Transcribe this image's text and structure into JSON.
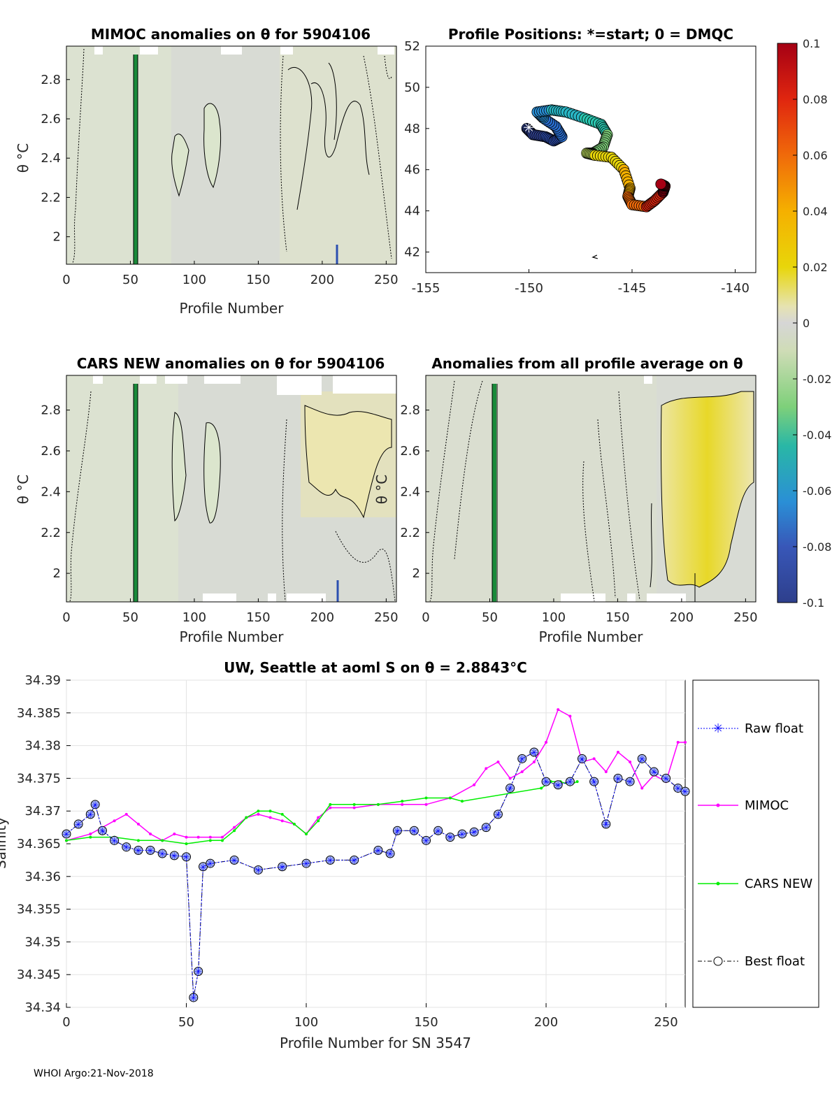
{
  "footer": "WHOI Argo:21-Nov-2018",
  "panels": {
    "mimoc": {
      "title": "MIMOC anomalies on θ  for 5904106",
      "xlabel": "Profile Number",
      "ylabel": "θ °C",
      "xticks": [
        0,
        50,
        100,
        150,
        200,
        250
      ],
      "yticks": [
        2,
        2.2,
        2.4,
        2.6,
        2.8
      ],
      "xlim": [
        0,
        258
      ],
      "ylim": [
        1.86,
        2.97
      ]
    },
    "positions": {
      "title": "Profile Positions: *=start; 0 = DMQC",
      "xticks": [
        -155,
        -150,
        -145,
        -140
      ],
      "yticks": [
        42,
        44,
        46,
        48,
        50,
        52
      ],
      "xlim": [
        -155,
        -139
      ],
      "ylim": [
        41,
        52
      ]
    },
    "cars": {
      "title": "CARS NEW anomalies on θ for 5904106",
      "xlabel": "Profile Number",
      "ylabel": "θ °C",
      "xticks": [
        0,
        50,
        100,
        150,
        200,
        250
      ],
      "yticks": [
        2,
        2.2,
        2.4,
        2.6,
        2.8
      ],
      "xlim": [
        0,
        258
      ],
      "ylim": [
        1.86,
        2.97
      ]
    },
    "avg": {
      "title": "Anomalies from all profile average on θ",
      "xlabel": "Profile Number",
      "ylabel": "θ °C",
      "xticks": [
        0,
        50,
        100,
        150,
        200,
        250
      ],
      "yticks": [
        2,
        2.2,
        2.4,
        2.6,
        2.8
      ],
      "xlim": [
        0,
        258
      ],
      "ylim": [
        1.86,
        2.97
      ]
    }
  },
  "colorbar": {
    "ticks": [
      "0.1",
      "0.08",
      "0.06",
      "0.04",
      "0.02",
      "0",
      "-0.02",
      "-0.04",
      "-0.06",
      "-0.08",
      "-0.1"
    ]
  },
  "chart_data": {
    "type": "line",
    "title": "UW, Seattle at aoml S on θ = 2.8843°C",
    "xlabel": "Profile Number for SN 3547",
    "ylabel": "Salinity",
    "xlim": [
      0,
      258
    ],
    "ylim": [
      34.34,
      34.39
    ],
    "xticks": [
      0,
      50,
      100,
      150,
      200,
      250
    ],
    "yticks": [
      "34.34",
      "34.345",
      "34.35",
      "34.355",
      "34.36",
      "34.365",
      "34.37",
      "34.375",
      "34.38",
      "34.385",
      "34.39"
    ],
    "grid": true,
    "legend_position": "outside-right",
    "series": [
      {
        "name": "Raw float",
        "color": "#0000ff",
        "x": [
          0,
          5,
          10,
          12,
          15,
          20,
          25,
          30,
          35,
          40,
          45,
          50,
          53,
          55,
          57,
          60,
          70,
          80,
          90,
          100,
          110,
          120,
          130,
          135,
          138,
          145,
          150,
          155,
          160,
          165,
          170,
          175,
          180,
          185,
          190,
          195,
          200,
          205,
          210,
          215,
          220,
          225,
          230,
          235,
          240,
          245,
          250,
          255,
          258
        ],
        "y": [
          34.3665,
          34.368,
          34.3695,
          34.371,
          34.367,
          34.3655,
          34.3645,
          34.364,
          34.364,
          34.3635,
          34.3632,
          34.363,
          34.3415,
          34.3455,
          34.3615,
          34.362,
          34.3625,
          34.361,
          34.3615,
          34.362,
          34.3625,
          34.3625,
          34.364,
          34.3635,
          34.367,
          34.367,
          34.3655,
          34.367,
          34.366,
          34.3665,
          34.3668,
          34.3675,
          34.3695,
          34.3735,
          34.378,
          34.379,
          34.3745,
          34.374,
          34.3745,
          34.378,
          34.3745,
          34.368,
          34.375,
          34.3745,
          34.378,
          34.376,
          34.375,
          34.3735,
          34.373
        ]
      },
      {
        "name": "MIMOC",
        "color": "#ff00ff",
        "x": [
          0,
          10,
          20,
          25,
          30,
          35,
          40,
          45,
          50,
          55,
          60,
          65,
          70,
          75,
          80,
          85,
          90,
          95,
          100,
          105,
          110,
          120,
          130,
          140,
          150,
          160,
          170,
          175,
          180,
          185,
          190,
          195,
          200,
          205,
          210,
          215,
          220,
          225,
          230,
          235,
          240,
          245,
          250,
          255,
          258
        ],
        "y": [
          34.3655,
          34.3665,
          34.3685,
          34.3695,
          34.368,
          34.3665,
          34.3655,
          34.3665,
          34.366,
          34.366,
          34.366,
          34.366,
          34.3675,
          34.369,
          34.3695,
          34.369,
          34.3685,
          34.368,
          34.3665,
          34.369,
          34.3705,
          34.3705,
          34.371,
          34.371,
          34.371,
          34.372,
          34.374,
          34.3765,
          34.3775,
          34.375,
          34.376,
          34.3775,
          34.3805,
          34.3855,
          34.3845,
          34.3775,
          34.378,
          34.376,
          34.379,
          34.3775,
          34.3735,
          34.3755,
          34.3745,
          34.3805,
          34.3805
        ]
      },
      {
        "name": "CARS NEW",
        "color": "#00ee00",
        "x": [
          0,
          10,
          20,
          30,
          40,
          50,
          60,
          65,
          70,
          75,
          80,
          85,
          90,
          95,
          100,
          105,
          110,
          120,
          130,
          140,
          150,
          160,
          165,
          198,
          202,
          206,
          210,
          213
        ],
        "y": [
          34.3655,
          34.366,
          34.366,
          34.3655,
          34.3655,
          34.365,
          34.3655,
          34.3655,
          34.367,
          34.369,
          34.37,
          34.37,
          34.3695,
          34.368,
          34.3665,
          34.3685,
          34.371,
          34.371,
          34.371,
          34.3715,
          34.372,
          34.372,
          34.3715,
          34.3735,
          34.3745,
          34.3745,
          34.374,
          34.3745
        ]
      },
      {
        "name": "Best float",
        "color": "#000000",
        "x": [
          0,
          5,
          10,
          12,
          15,
          20,
          25,
          30,
          35,
          40,
          45,
          50,
          53,
          55,
          57,
          60,
          70,
          80,
          90,
          100,
          110,
          120,
          130,
          135,
          138,
          145,
          150,
          155,
          160,
          165,
          170,
          175,
          180,
          185,
          190,
          195,
          200,
          205,
          210,
          215,
          220,
          225,
          230,
          235,
          240,
          245,
          250,
          255,
          258
        ],
        "y": [
          34.3665,
          34.368,
          34.3695,
          34.371,
          34.367,
          34.3655,
          34.3645,
          34.364,
          34.364,
          34.3635,
          34.3632,
          34.363,
          34.3415,
          34.3455,
          34.3615,
          34.362,
          34.3625,
          34.361,
          34.3615,
          34.362,
          34.3625,
          34.3625,
          34.364,
          34.3635,
          34.367,
          34.367,
          34.3655,
          34.367,
          34.366,
          34.3665,
          34.3668,
          34.3675,
          34.3695,
          34.3735,
          34.378,
          34.379,
          34.3745,
          34.374,
          34.3745,
          34.378,
          34.3745,
          34.368,
          34.375,
          34.3745,
          34.378,
          34.376,
          34.375,
          34.3735,
          34.373
        ]
      }
    ],
    "track": {
      "lon": [
        -150.1,
        -149.8,
        -149.2,
        -148.8,
        -148.4,
        -148.7,
        -149.3,
        -149.6,
        -148.9,
        -148.2,
        -147.3,
        -146.5,
        -146.2,
        -146.4,
        -146.9,
        -147.2,
        -146.8,
        -146.0,
        -145.4,
        -145.1,
        -145.2,
        -145.0,
        -144.3,
        -143.9,
        -143.5,
        -143.4,
        -143.6
      ],
      "lat": [
        48.0,
        47.7,
        47.6,
        47.4,
        47.6,
        48.1,
        48.5,
        48.8,
        48.9,
        48.8,
        48.5,
        48.2,
        47.7,
        47.1,
        46.8,
        46.8,
        46.7,
        46.6,
        46.0,
        45.1,
        44.7,
        44.3,
        44.2,
        44.5,
        44.9,
        45.2,
        45.3
      ],
      "start_lon": -150.0,
      "start_lat": 48.05,
      "marks": [
        "+",
        "+",
        "+"
      ]
    }
  }
}
